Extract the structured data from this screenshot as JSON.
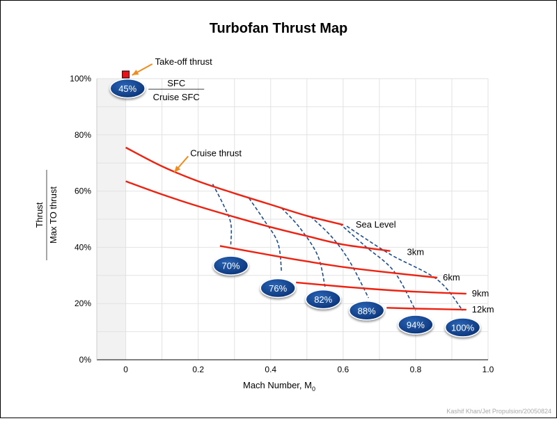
{
  "chart_data": {
    "type": "line",
    "title": "Turbofan Thrust Map",
    "xlabel": "Mach Number, M",
    "xlabel_subscript": "0",
    "ylabel_numerator": "Thrust",
    "ylabel_denominator": "Max TO thrust",
    "xlim": [
      -0.08,
      1.0
    ],
    "ylim": [
      0,
      100
    ],
    "x_ticks": [
      0,
      0.2,
      0.4,
      0.6,
      0.8,
      1.0
    ],
    "x_tick_labels": [
      "0",
      "0.2",
      "0.4",
      "0.6",
      "0.8",
      "1.0"
    ],
    "y_ticks": [
      0,
      20,
      40,
      60,
      80,
      100
    ],
    "y_tick_labels": [
      "0%",
      "20%",
      "40%",
      "60%",
      "80%",
      "100%"
    ],
    "grid": true,
    "colors": {
      "thrust_line": "#ee2211",
      "sfc_line": "#1e4d8c",
      "badge": "#0d3e8a",
      "arrow": "#f08c1e",
      "marker": "#e8121a",
      "shade": "#f2f2f2"
    },
    "series": [
      {
        "label": "Sea Level",
        "x": [
          0,
          0.1,
          0.2,
          0.3,
          0.4,
          0.5,
          0.6
        ],
        "y": [
          75.5,
          68.8,
          63.5,
          59.2,
          55.2,
          51.2,
          48
        ]
      },
      {
        "label": "3km",
        "x": [
          0,
          0.1,
          0.2,
          0.3,
          0.4,
          0.5,
          0.6,
          0.73
        ],
        "y": [
          63.5,
          58.8,
          54.6,
          50.8,
          47.2,
          44,
          41,
          38.7
        ]
      },
      {
        "label": "6km",
        "x": [
          0.26,
          0.4,
          0.5,
          0.6,
          0.7,
          0.86
        ],
        "y": [
          40.5,
          37.2,
          35,
          33,
          31.4,
          29.2
        ]
      },
      {
        "label": "9km",
        "x": [
          0.47,
          0.6,
          0.7,
          0.8,
          0.94
        ],
        "y": [
          27.5,
          26,
          25,
          24.2,
          23.5
        ]
      },
      {
        "label": "12km",
        "x": [
          0.72,
          0.8,
          0.94
        ],
        "y": [
          18.5,
          18.2,
          17.8
        ]
      }
    ],
    "sfc_curves": [
      {
        "label": "70%",
        "x": [
          0.24,
          0.27,
          0.29,
          0.29
        ],
        "y": [
          62.5,
          55,
          48.5,
          41
        ]
      },
      {
        "label": "76%",
        "x": [
          0.34,
          0.38,
          0.42,
          0.43
        ],
        "y": [
          57.5,
          50,
          41.5,
          31
        ]
      },
      {
        "label": "82%",
        "x": [
          0.43,
          0.48,
          0.53,
          0.55
        ],
        "y": [
          54,
          47,
          37,
          26
        ]
      },
      {
        "label": "88%",
        "x": [
          0.51,
          0.57,
          0.62,
          0.67
        ],
        "y": [
          51,
          43.5,
          34.5,
          22
        ]
      },
      {
        "label": "94%",
        "x": [
          0.59,
          0.66,
          0.74,
          0.8
        ],
        "y": [
          48.5,
          40.5,
          31.5,
          17.5
        ]
      },
      {
        "label": "100%",
        "x": [
          0.61,
          0.73,
          0.86,
          0.93
        ],
        "y": [
          47.5,
          37.5,
          28.5,
          17.5
        ]
      }
    ],
    "badges": [
      {
        "label": "70%",
        "x": 0.29,
        "y": 33.5
      },
      {
        "label": "76%",
        "x": 0.42,
        "y": 25.5
      },
      {
        "label": "82%",
        "x": 0.545,
        "y": 21.5
      },
      {
        "label": "88%",
        "x": 0.665,
        "y": 17.5
      },
      {
        "label": "94%",
        "x": 0.8,
        "y": 12.5
      },
      {
        "label": "100%",
        "x": 0.93,
        "y": 11.5
      }
    ],
    "legend_badge": {
      "label": "45%",
      "x": 0.005,
      "y": 96.5
    },
    "sfc_numerator": "SFC",
    "sfc_denominator": "Cruise SFC",
    "takeoff_point": {
      "x": 0,
      "y": 100,
      "label": "Take-off thrust"
    },
    "cruise_label": "Cruise thrust",
    "credit": "Kashif Khan/Jet Propulsion/20050824"
  }
}
